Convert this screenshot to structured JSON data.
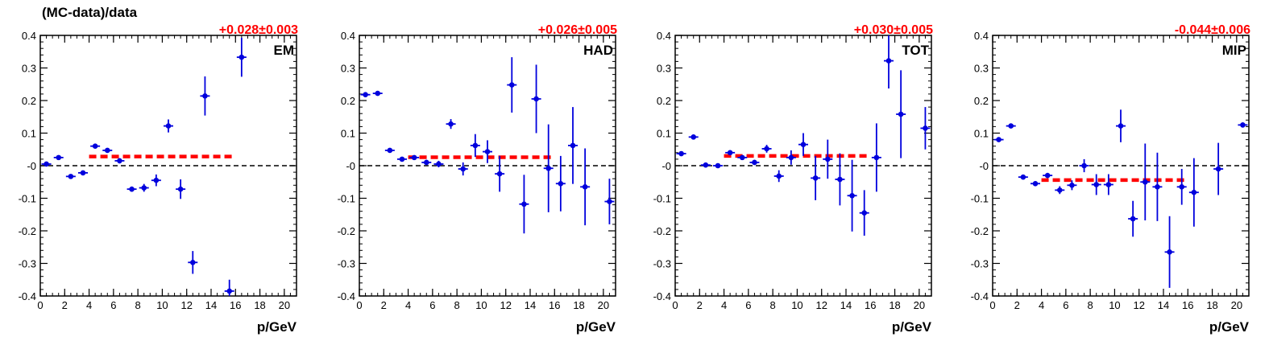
{
  "ylabel": "(MC-data)/data",
  "colors": {
    "points": "#0000dd",
    "fit": "#ff0000",
    "zero_line": "#000000",
    "frame": "#000000"
  },
  "chart_data": [
    {
      "type": "scatter",
      "label": "EM",
      "fit_text": "+0.028±0.003",
      "xlabel": "p/GeV",
      "xlim": [
        0,
        21
      ],
      "ylim": [
        -0.4,
        0.4
      ],
      "x_ticks": [
        "0",
        "2",
        "4",
        "6",
        "8",
        "10",
        "12",
        "14",
        "16",
        "18",
        "20"
      ],
      "y_ticks": [
        "-0.4",
        "-0.3",
        "-0.2",
        "-0.1",
        "-0",
        "0.1",
        "0.2",
        "0.3",
        "0.4"
      ],
      "fit": {
        "x_range": [
          4,
          16
        ],
        "y": 0.028
      },
      "points": [
        {
          "x": 0.5,
          "y": 0.005,
          "err": 0.006
        },
        {
          "x": 1.5,
          "y": 0.025,
          "err": 0.006
        },
        {
          "x": 2.5,
          "y": -0.033,
          "err": 0.006
        },
        {
          "x": 3.5,
          "y": -0.022,
          "err": 0.006
        },
        {
          "x": 4.5,
          "y": 0.06,
          "err": 0.006
        },
        {
          "x": 5.5,
          "y": 0.047,
          "err": 0.006
        },
        {
          "x": 6.5,
          "y": 0.015,
          "err": 0.008
        },
        {
          "x": 7.5,
          "y": -0.072,
          "err": 0.008
        },
        {
          "x": 8.5,
          "y": -0.068,
          "err": 0.012
        },
        {
          "x": 9.5,
          "y": -0.045,
          "err": 0.018
        },
        {
          "x": 10.5,
          "y": 0.122,
          "err": 0.02
        },
        {
          "x": 11.5,
          "y": -0.072,
          "err": 0.03
        },
        {
          "x": 12.5,
          "y": -0.297,
          "err": 0.035
        },
        {
          "x": 13.5,
          "y": 0.214,
          "err": 0.06
        },
        {
          "x": 15.5,
          "y": -0.385,
          "err": 0.035
        },
        {
          "x": 16.5,
          "y": 0.333,
          "err": 0.06
        }
      ]
    },
    {
      "type": "scatter",
      "label": "HAD",
      "fit_text": "+0.026±0.005",
      "xlabel": "p/GeV",
      "xlim": [
        0,
        21
      ],
      "ylim": [
        -0.4,
        0.4
      ],
      "x_ticks": [
        "0",
        "2",
        "4",
        "6",
        "8",
        "10",
        "12",
        "14",
        "16",
        "18",
        "20"
      ],
      "y_ticks": [
        "-0.4",
        "-0.3",
        "-0.2",
        "-0.1",
        "-0",
        "0.1",
        "0.2",
        "0.3",
        "0.4"
      ],
      "fit": {
        "x_range": [
          4,
          16
        ],
        "y": 0.026
      },
      "points": [
        {
          "x": 0.5,
          "y": 0.218,
          "err": 0.006
        },
        {
          "x": 1.5,
          "y": 0.222,
          "err": 0.006
        },
        {
          "x": 2.5,
          "y": 0.047,
          "err": 0.006
        },
        {
          "x": 3.5,
          "y": 0.02,
          "err": 0.006
        },
        {
          "x": 4.5,
          "y": 0.025,
          "err": 0.006
        },
        {
          "x": 5.5,
          "y": 0.01,
          "err": 0.008
        },
        {
          "x": 6.5,
          "y": 0.005,
          "err": 0.01
        },
        {
          "x": 7.5,
          "y": 0.128,
          "err": 0.015
        },
        {
          "x": 8.5,
          "y": -0.01,
          "err": 0.02
        },
        {
          "x": 9.5,
          "y": 0.062,
          "err": 0.035
        },
        {
          "x": 10.5,
          "y": 0.043,
          "err": 0.035
        },
        {
          "x": 11.5,
          "y": -0.025,
          "err": 0.055
        },
        {
          "x": 12.5,
          "y": 0.248,
          "err": 0.085
        },
        {
          "x": 13.5,
          "y": -0.118,
          "err": 0.09
        },
        {
          "x": 14.5,
          "y": 0.205,
          "err": 0.105
        },
        {
          "x": 15.5,
          "y": -0.008,
          "err": 0.135
        },
        {
          "x": 16.5,
          "y": -0.055,
          "err": 0.085
        },
        {
          "x": 17.5,
          "y": 0.062,
          "err": 0.118
        },
        {
          "x": 18.5,
          "y": -0.065,
          "err": 0.118
        },
        {
          "x": 20.5,
          "y": -0.11,
          "err": 0.07
        }
      ]
    },
    {
      "type": "scatter",
      "label": "TOT",
      "fit_text": "+0.030±0.005",
      "xlabel": "p/GeV",
      "xlim": [
        0,
        21
      ],
      "ylim": [
        -0.4,
        0.4
      ],
      "x_ticks": [
        "0",
        "2",
        "4",
        "6",
        "8",
        "10",
        "12",
        "14",
        "16",
        "18",
        "20"
      ],
      "y_ticks": [
        "-0.4",
        "-0.3",
        "-0.2",
        "-0.1",
        "-0",
        "0.1",
        "0.2",
        "0.3",
        "0.4"
      ],
      "fit": {
        "x_range": [
          4,
          16
        ],
        "y": 0.03
      },
      "points": [
        {
          "x": 0.5,
          "y": 0.037,
          "err": 0.006
        },
        {
          "x": 1.5,
          "y": 0.088,
          "err": 0.006
        },
        {
          "x": 2.5,
          "y": 0.002,
          "err": 0.006
        },
        {
          "x": 3.5,
          "y": 0.0,
          "err": 0.006
        },
        {
          "x": 4.5,
          "y": 0.04,
          "err": 0.006
        },
        {
          "x": 5.5,
          "y": 0.025,
          "err": 0.006
        },
        {
          "x": 6.5,
          "y": 0.01,
          "err": 0.008
        },
        {
          "x": 7.5,
          "y": 0.052,
          "err": 0.012
        },
        {
          "x": 8.5,
          "y": -0.032,
          "err": 0.018
        },
        {
          "x": 9.5,
          "y": 0.025,
          "err": 0.022
        },
        {
          "x": 10.5,
          "y": 0.065,
          "err": 0.035
        },
        {
          "x": 11.5,
          "y": -0.038,
          "err": 0.068
        },
        {
          "x": 12.5,
          "y": 0.02,
          "err": 0.06
        },
        {
          "x": 13.5,
          "y": -0.042,
          "err": 0.08
        },
        {
          "x": 14.5,
          "y": -0.092,
          "err": 0.11
        },
        {
          "x": 15.5,
          "y": -0.145,
          "err": 0.07
        },
        {
          "x": 16.5,
          "y": 0.025,
          "err": 0.105
        },
        {
          "x": 17.5,
          "y": 0.322,
          "err": 0.085
        },
        {
          "x": 18.5,
          "y": 0.158,
          "err": 0.135
        },
        {
          "x": 20.5,
          "y": 0.115,
          "err": 0.065
        }
      ]
    },
    {
      "type": "scatter",
      "label": "MIP",
      "fit_text": "-0.044±0.006",
      "xlabel": "p/GeV",
      "xlim": [
        0,
        21
      ],
      "ylim": [
        -0.4,
        0.4
      ],
      "x_ticks": [
        "0",
        "2",
        "4",
        "6",
        "8",
        "10",
        "12",
        "14",
        "16",
        "18",
        "20"
      ],
      "y_ticks": [
        "-0.4",
        "-0.3",
        "-0.2",
        "-0.1",
        "-0",
        "0.1",
        "0.2",
        "0.3",
        "0.4"
      ],
      "fit": {
        "x_range": [
          4,
          16
        ],
        "y": -0.044
      },
      "points": [
        {
          "x": 0.5,
          "y": 0.08,
          "err": 0.006
        },
        {
          "x": 1.5,
          "y": 0.122,
          "err": 0.006
        },
        {
          "x": 2.5,
          "y": -0.035,
          "err": 0.006
        },
        {
          "x": 3.5,
          "y": -0.055,
          "err": 0.006
        },
        {
          "x": 4.5,
          "y": -0.03,
          "err": 0.008
        },
        {
          "x": 5.5,
          "y": -0.075,
          "err": 0.012
        },
        {
          "x": 6.5,
          "y": -0.06,
          "err": 0.015
        },
        {
          "x": 7.5,
          "y": 0.0,
          "err": 0.02
        },
        {
          "x": 8.5,
          "y": -0.058,
          "err": 0.032
        },
        {
          "x": 9.5,
          "y": -0.058,
          "err": 0.032
        },
        {
          "x": 10.5,
          "y": 0.122,
          "err": 0.05
        },
        {
          "x": 11.5,
          "y": -0.163,
          "err": 0.055
        },
        {
          "x": 12.5,
          "y": -0.05,
          "err": 0.118
        },
        {
          "x": 13.5,
          "y": -0.065,
          "err": 0.105
        },
        {
          "x": 14.5,
          "y": -0.265,
          "err": 0.11
        },
        {
          "x": 15.5,
          "y": -0.065,
          "err": 0.055
        },
        {
          "x": 16.5,
          "y": -0.082,
          "err": 0.105
        },
        {
          "x": 18.5,
          "y": -0.01,
          "err": 0.08
        },
        {
          "x": 20.5,
          "y": 0.125,
          "err": 0.008
        }
      ]
    }
  ]
}
